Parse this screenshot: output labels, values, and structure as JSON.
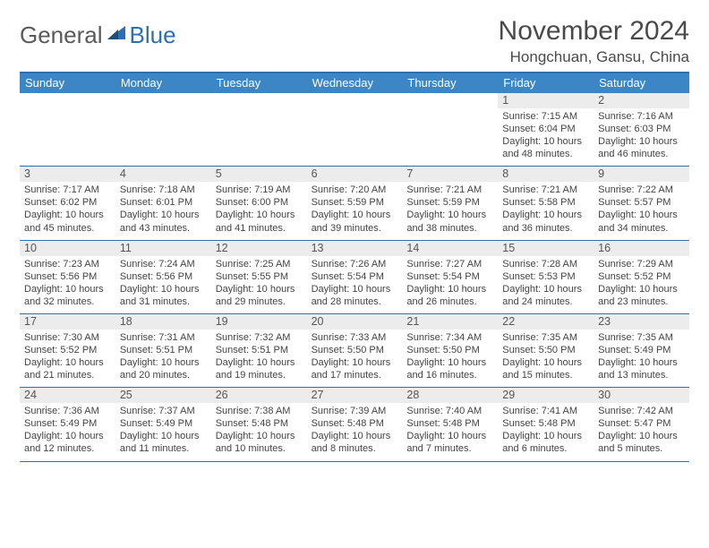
{
  "logo": {
    "part1": "General",
    "part2": "Blue"
  },
  "title": "November 2024",
  "location": "Hongchuan, Gansu, China",
  "colors": {
    "header_bg": "#3d86c6",
    "border": "#2f6fb0",
    "daynum_bg": "#ececec",
    "text": "#444444"
  },
  "weekdays": [
    "Sunday",
    "Monday",
    "Tuesday",
    "Wednesday",
    "Thursday",
    "Friday",
    "Saturday"
  ],
  "weeks": [
    [
      null,
      null,
      null,
      null,
      null,
      {
        "n": "1",
        "sr": "7:15 AM",
        "ss": "6:04 PM",
        "dl": "10 hours and 48 minutes."
      },
      {
        "n": "2",
        "sr": "7:16 AM",
        "ss": "6:03 PM",
        "dl": "10 hours and 46 minutes."
      }
    ],
    [
      {
        "n": "3",
        "sr": "7:17 AM",
        "ss": "6:02 PM",
        "dl": "10 hours and 45 minutes."
      },
      {
        "n": "4",
        "sr": "7:18 AM",
        "ss": "6:01 PM",
        "dl": "10 hours and 43 minutes."
      },
      {
        "n": "5",
        "sr": "7:19 AM",
        "ss": "6:00 PM",
        "dl": "10 hours and 41 minutes."
      },
      {
        "n": "6",
        "sr": "7:20 AM",
        "ss": "5:59 PM",
        "dl": "10 hours and 39 minutes."
      },
      {
        "n": "7",
        "sr": "7:21 AM",
        "ss": "5:59 PM",
        "dl": "10 hours and 38 minutes."
      },
      {
        "n": "8",
        "sr": "7:21 AM",
        "ss": "5:58 PM",
        "dl": "10 hours and 36 minutes."
      },
      {
        "n": "9",
        "sr": "7:22 AM",
        "ss": "5:57 PM",
        "dl": "10 hours and 34 minutes."
      }
    ],
    [
      {
        "n": "10",
        "sr": "7:23 AM",
        "ss": "5:56 PM",
        "dl": "10 hours and 32 minutes."
      },
      {
        "n": "11",
        "sr": "7:24 AM",
        "ss": "5:56 PM",
        "dl": "10 hours and 31 minutes."
      },
      {
        "n": "12",
        "sr": "7:25 AM",
        "ss": "5:55 PM",
        "dl": "10 hours and 29 minutes."
      },
      {
        "n": "13",
        "sr": "7:26 AM",
        "ss": "5:54 PM",
        "dl": "10 hours and 28 minutes."
      },
      {
        "n": "14",
        "sr": "7:27 AM",
        "ss": "5:54 PM",
        "dl": "10 hours and 26 minutes."
      },
      {
        "n": "15",
        "sr": "7:28 AM",
        "ss": "5:53 PM",
        "dl": "10 hours and 24 minutes."
      },
      {
        "n": "16",
        "sr": "7:29 AM",
        "ss": "5:52 PM",
        "dl": "10 hours and 23 minutes."
      }
    ],
    [
      {
        "n": "17",
        "sr": "7:30 AM",
        "ss": "5:52 PM",
        "dl": "10 hours and 21 minutes."
      },
      {
        "n": "18",
        "sr": "7:31 AM",
        "ss": "5:51 PM",
        "dl": "10 hours and 20 minutes."
      },
      {
        "n": "19",
        "sr": "7:32 AM",
        "ss": "5:51 PM",
        "dl": "10 hours and 19 minutes."
      },
      {
        "n": "20",
        "sr": "7:33 AM",
        "ss": "5:50 PM",
        "dl": "10 hours and 17 minutes."
      },
      {
        "n": "21",
        "sr": "7:34 AM",
        "ss": "5:50 PM",
        "dl": "10 hours and 16 minutes."
      },
      {
        "n": "22",
        "sr": "7:35 AM",
        "ss": "5:50 PM",
        "dl": "10 hours and 15 minutes."
      },
      {
        "n": "23",
        "sr": "7:35 AM",
        "ss": "5:49 PM",
        "dl": "10 hours and 13 minutes."
      }
    ],
    [
      {
        "n": "24",
        "sr": "7:36 AM",
        "ss": "5:49 PM",
        "dl": "10 hours and 12 minutes."
      },
      {
        "n": "25",
        "sr": "7:37 AM",
        "ss": "5:49 PM",
        "dl": "10 hours and 11 minutes."
      },
      {
        "n": "26",
        "sr": "7:38 AM",
        "ss": "5:48 PM",
        "dl": "10 hours and 10 minutes."
      },
      {
        "n": "27",
        "sr": "7:39 AM",
        "ss": "5:48 PM",
        "dl": "10 hours and 8 minutes."
      },
      {
        "n": "28",
        "sr": "7:40 AM",
        "ss": "5:48 PM",
        "dl": "10 hours and 7 minutes."
      },
      {
        "n": "29",
        "sr": "7:41 AM",
        "ss": "5:48 PM",
        "dl": "10 hours and 6 minutes."
      },
      {
        "n": "30",
        "sr": "7:42 AM",
        "ss": "5:47 PM",
        "dl": "10 hours and 5 minutes."
      }
    ]
  ],
  "labels": {
    "sunrise": "Sunrise: ",
    "sunset": "Sunset: ",
    "daylight": "Daylight: "
  }
}
